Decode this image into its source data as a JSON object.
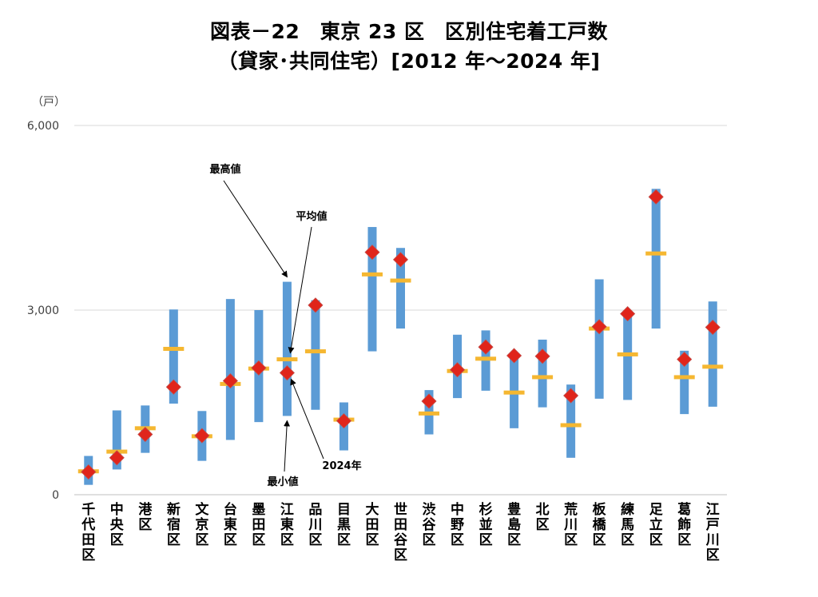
{
  "title": {
    "line1": "図表－22　東京 23 区　区別住宅着工戸数",
    "line2": "（貸家･共同住宅）[2012 年～2024 年]"
  },
  "chart_data": {
    "type": "range",
    "unit_label": "（戸）",
    "ylim": [
      0,
      6000
    ],
    "yticks": [
      0,
      3000,
      6000
    ],
    "ytick_labels": [
      "0",
      "3,000",
      "6,000"
    ],
    "grid": true,
    "categories": [
      "千代田区",
      "中央区",
      "港区",
      "新宿区",
      "文京区",
      "台東区",
      "墨田区",
      "江東区",
      "品川区",
      "目黒区",
      "大田区",
      "世田谷区",
      "渋谷区",
      "中野区",
      "杉並区",
      "豊島区",
      "北区",
      "荒川区",
      "板橋区",
      "練馬区",
      "足立区",
      "葛飾区",
      "江戸川区"
    ],
    "series": [
      {
        "name": "最高値",
        "values": [
          630,
          1370,
          1450,
          3010,
          1360,
          3180,
          3000,
          3460,
          3160,
          1500,
          4350,
          4010,
          1700,
          2600,
          2670,
          2270,
          2520,
          1790,
          3500,
          2970,
          4970,
          2340,
          3140
        ]
      },
      {
        "name": "最小値",
        "values": [
          160,
          410,
          680,
          1480,
          550,
          890,
          1180,
          1280,
          1380,
          720,
          2330,
          2700,
          980,
          1570,
          1690,
          1080,
          1420,
          600,
          1560,
          1540,
          2700,
          1310,
          1430
        ]
      },
      {
        "name": "平均値",
        "values": [
          380,
          700,
          1080,
          2370,
          950,
          1800,
          2050,
          2200,
          2330,
          1220,
          3580,
          3480,
          1320,
          2010,
          2210,
          1660,
          1910,
          1130,
          2700,
          2280,
          3920,
          1910,
          2080
        ]
      },
      {
        "name": "2024年",
        "values": [
          370,
          600,
          980,
          1750,
          960,
          1850,
          2060,
          1980,
          3080,
          1200,
          3940,
          3820,
          1520,
          2030,
          2400,
          2260,
          2250,
          1610,
          2730,
          2940,
          4840,
          2200,
          2720
        ]
      }
    ],
    "annotations": [
      {
        "text": "最高値",
        "target": "江東区"
      },
      {
        "text": "平均値",
        "target": "江東区"
      },
      {
        "text": "最小値",
        "target": "江東区"
      },
      {
        "text": "2024年",
        "target": "江東区"
      }
    ],
    "colors": {
      "range": "#5B9BD5",
      "average": "#F5B731",
      "latest": "#E0251B",
      "latest_edge": "#C0504D",
      "grid": "#D9D9D9"
    }
  }
}
